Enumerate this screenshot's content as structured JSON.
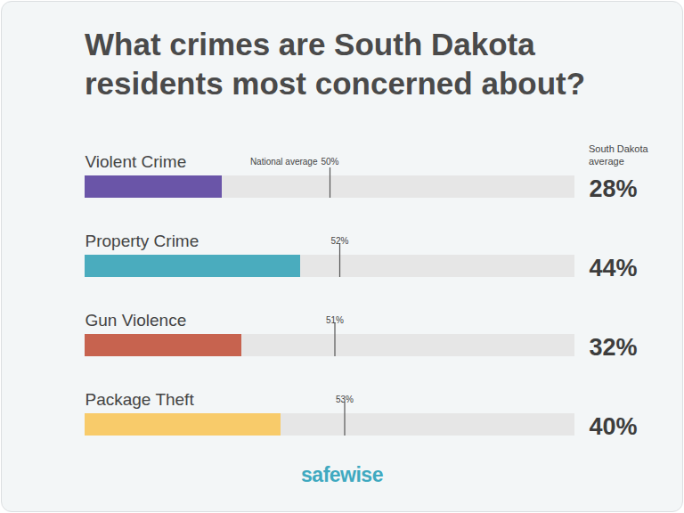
{
  "chart_data": {
    "type": "bar",
    "orientation": "horizontal",
    "title": "What crimes are South Dakota residents most concerned about?",
    "categories": [
      "Violent Crime",
      "Property Crime",
      "Gun Violence",
      "Package Theft"
    ],
    "xlim": [
      0,
      100
    ],
    "tick_labels": false,
    "data_labels": true,
    "series": [
      {
        "name": "South Dakota average",
        "type": "bar",
        "colors": [
          "#6a55a8",
          "#4aacbe",
          "#c7634f",
          "#f8cb6a"
        ],
        "values": [
          28,
          44,
          32,
          40
        ],
        "value_labels": [
          "28%",
          "44%",
          "32%",
          "40%"
        ]
      },
      {
        "name": "National average",
        "type": "rule",
        "color": "#555555",
        "values": [
          50,
          52,
          51,
          53
        ],
        "value_labels": [
          "50%",
          "52%",
          "51%",
          "53%"
        ]
      }
    ],
    "source": "safewise"
  }
}
